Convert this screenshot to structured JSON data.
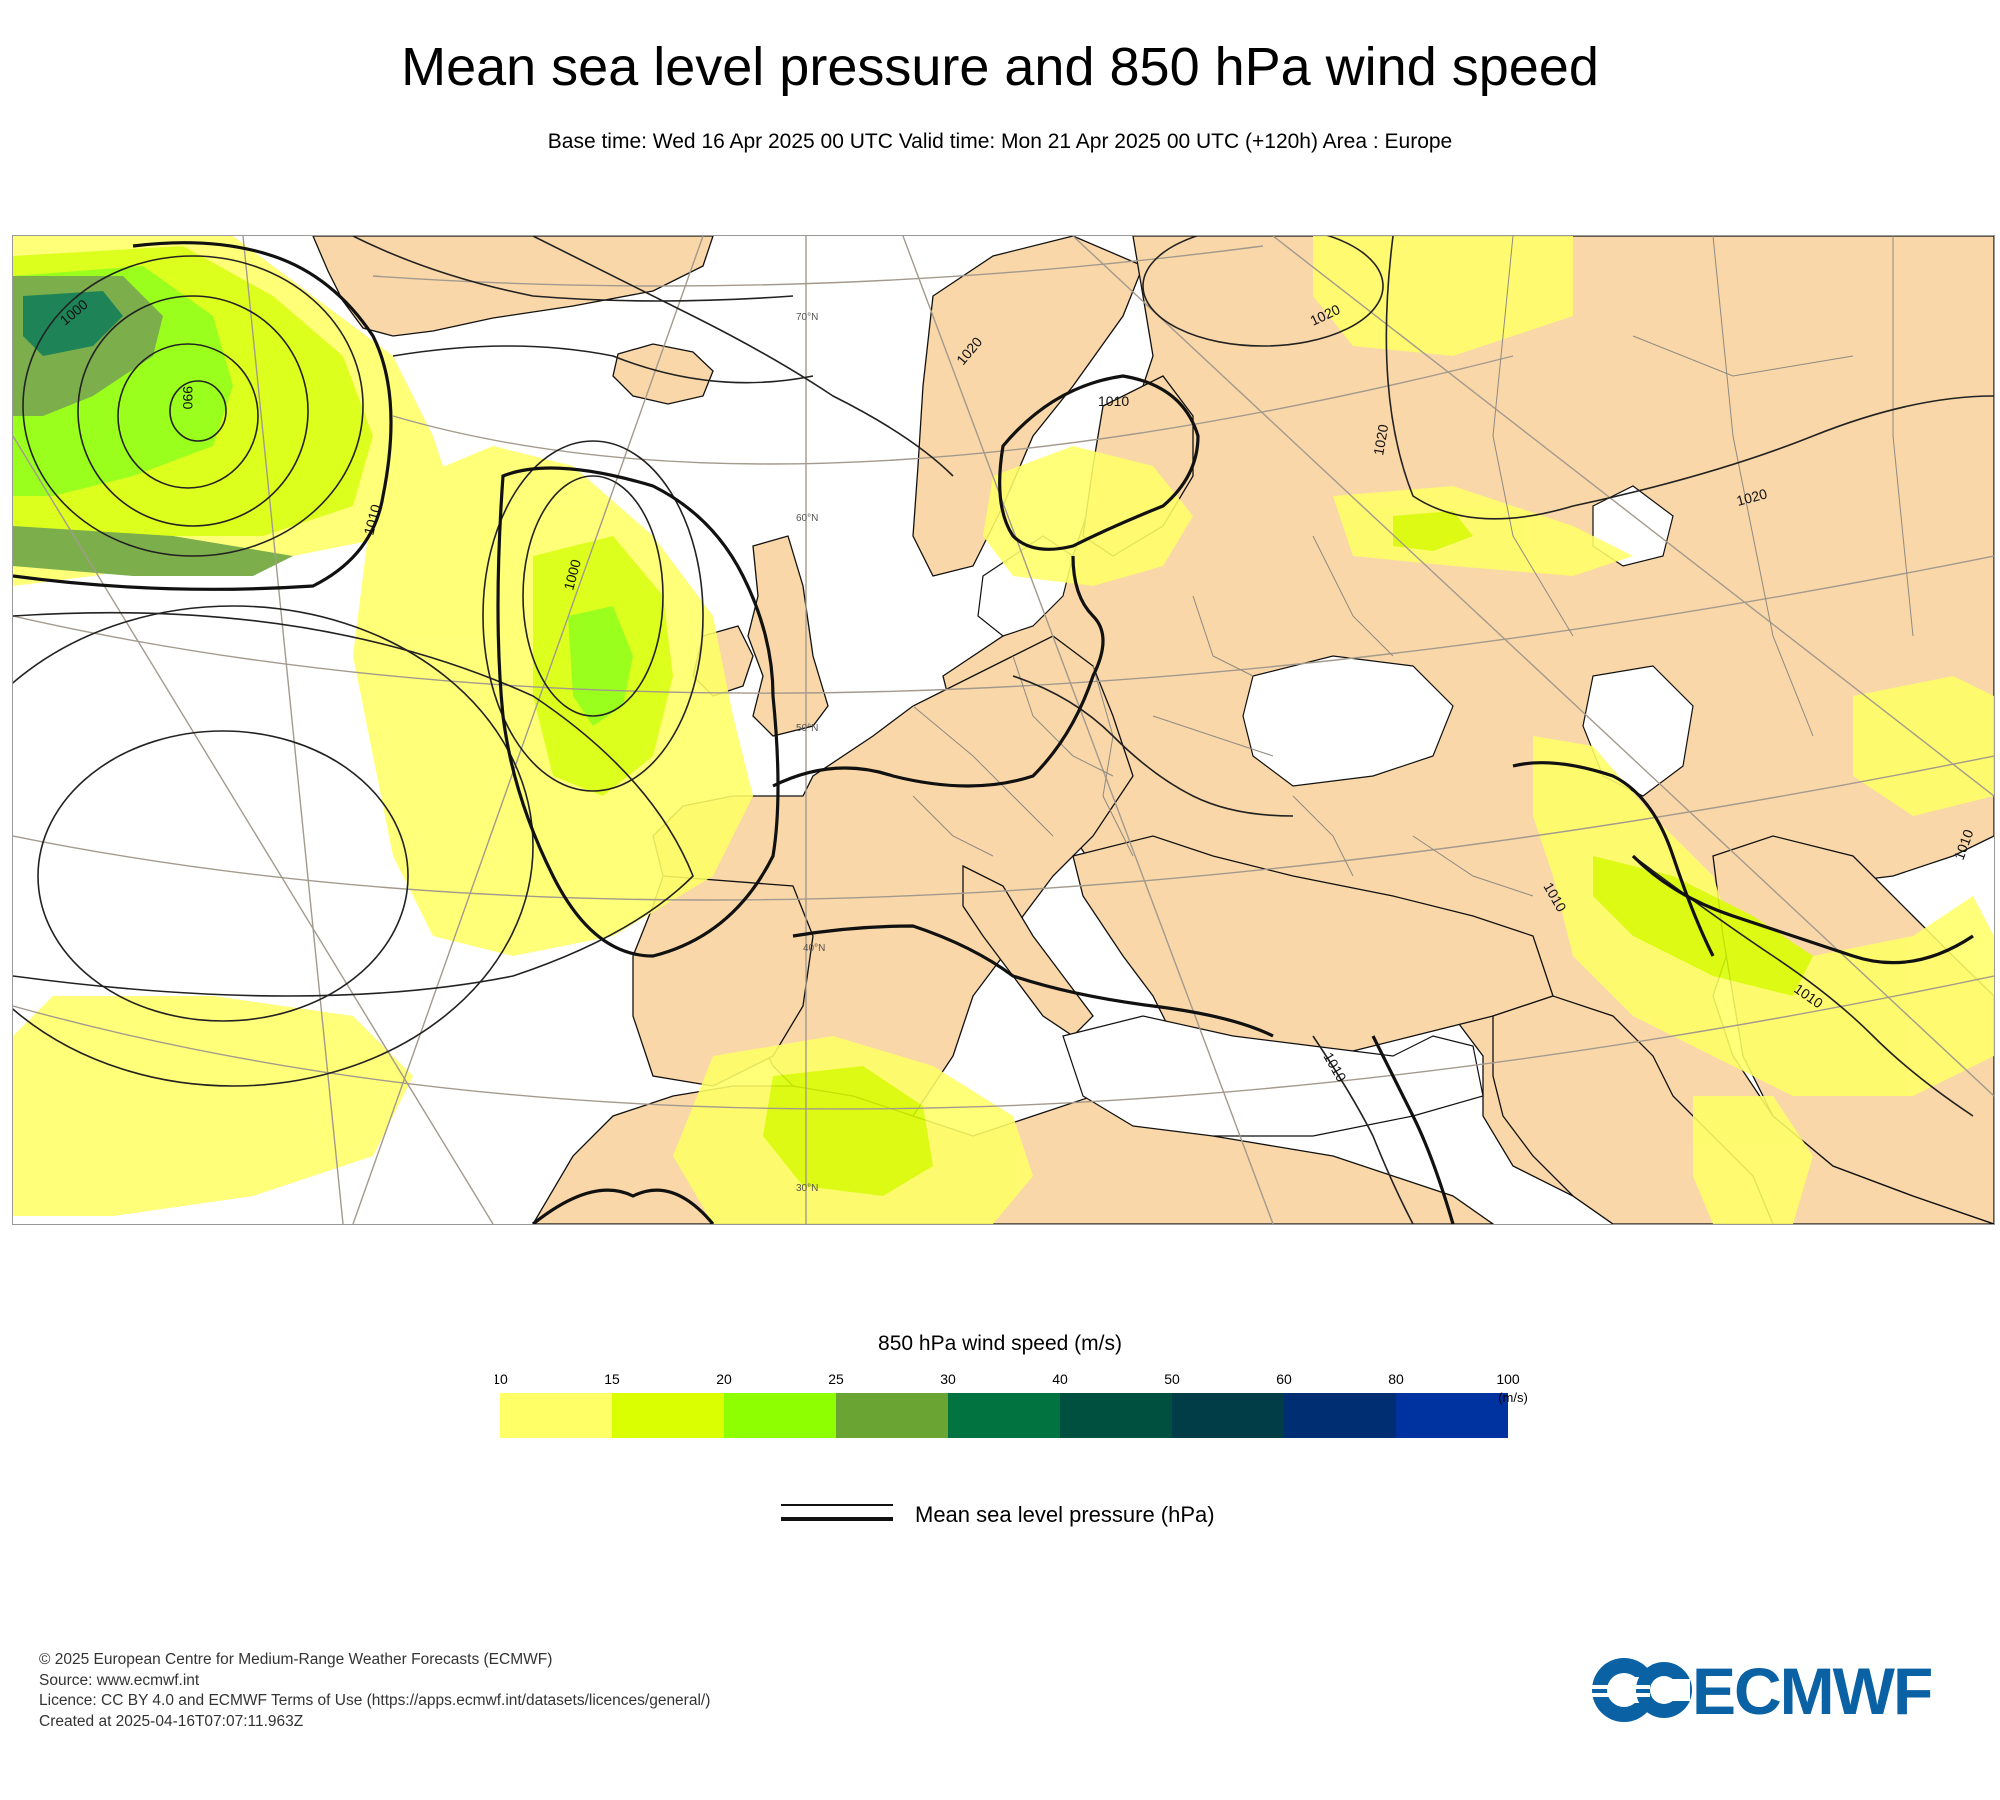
{
  "title": "Mean sea level pressure and 850 hPa wind speed",
  "subtitle": "Base time: Wed 16 Apr 2025 00 UTC Valid time: Mon 21 Apr 2025 00 UTC (+120h) Area : Europe",
  "map": {
    "colors": {
      "land": "#f9d7a8",
      "sea": "#ffffff",
      "isobar": "#222222",
      "graticule": "#999082",
      "borders": "#8f8a82"
    },
    "latitude_labels": [
      "70°N",
      "60°N",
      "50°N",
      "40°N",
      "30°N"
    ],
    "isobar_labels": [
      "1000",
      "990",
      "1010",
      "1000",
      "1020",
      "1010",
      "1020",
      "1020",
      "1020",
      "1010",
      "1010",
      "1010",
      "1010"
    ]
  },
  "legend": {
    "wind_title": "850 hPa wind speed (m/s)",
    "unit": "(m/s)",
    "ticks": [
      "10",
      "15",
      "20",
      "25",
      "30",
      "40",
      "50",
      "60",
      "80",
      "100"
    ],
    "colors": [
      "#ffff66",
      "#d9ff00",
      "#8eff00",
      "#6aa533",
      "#007340",
      "#005040",
      "#003d46",
      "#002e73",
      "#0032a0"
    ],
    "pressure_label": "Mean sea level pressure (hPa)"
  },
  "footer": {
    "copyright": "© 2025 European Centre for Medium-Range Weather Forecasts (ECMWF)",
    "source": "Source: www.ecmwf.int",
    "licence": "Licence: CC BY 4.0 and ECMWF Terms of Use (https://apps.ecmwf.int/datasets/licences/general/)",
    "created": "Created at 2025-04-16T07:07:11.963Z"
  },
  "logo": {
    "text": "ECMWF",
    "color": "#0a61a4"
  }
}
